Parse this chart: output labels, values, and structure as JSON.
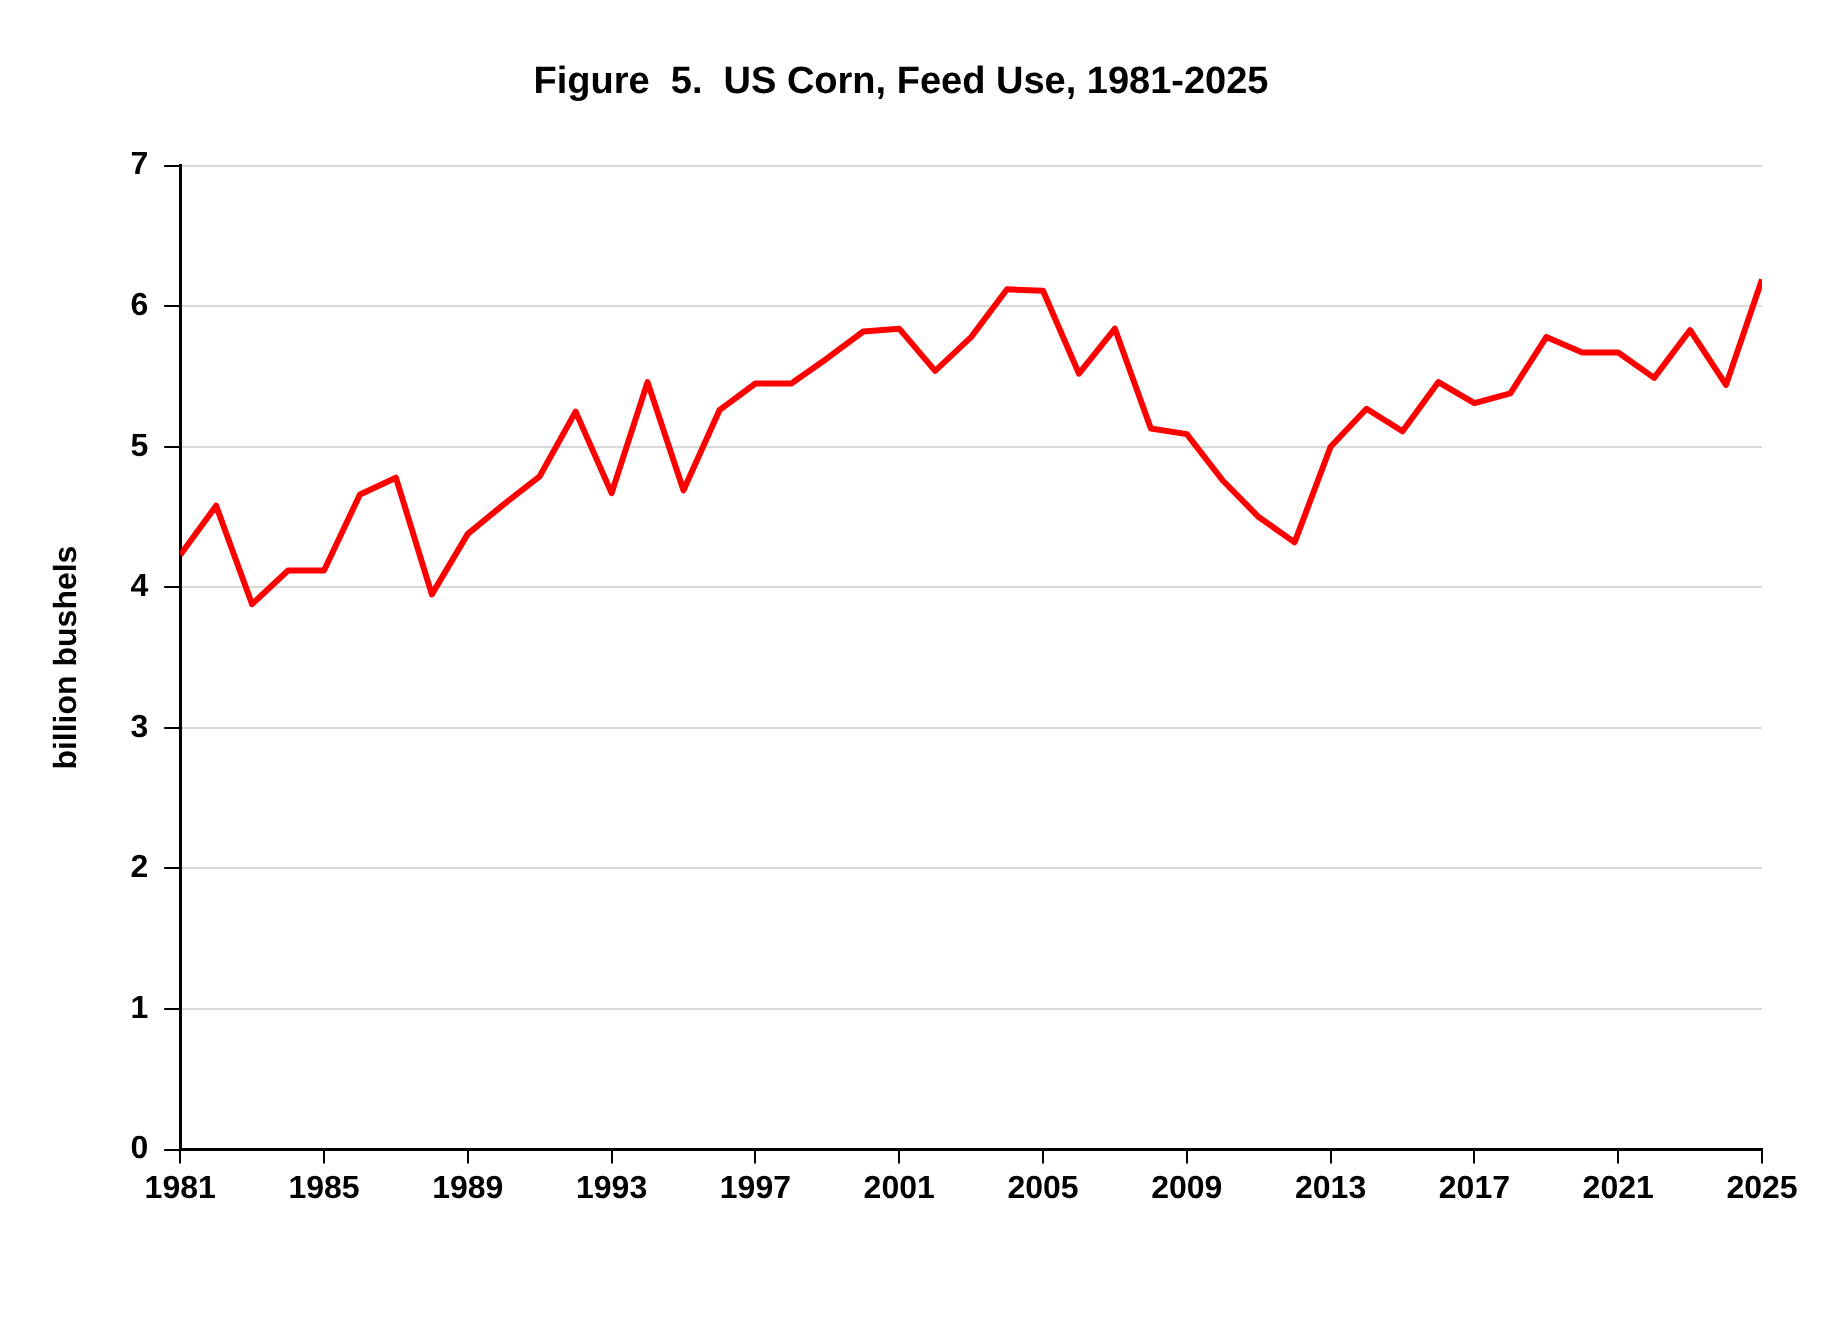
{
  "chart_data": {
    "type": "line",
    "title": "Figure  5.  US Corn, Feed Use, 1981-2025",
    "ylabel": "billion bushels",
    "x": [
      1981,
      1982,
      1983,
      1984,
      1985,
      1986,
      1987,
      1988,
      1989,
      1990,
      1991,
      1992,
      1993,
      1994,
      1995,
      1996,
      1997,
      1998,
      1999,
      2000,
      2001,
      2002,
      2003,
      2004,
      2005,
      2006,
      2007,
      2008,
      2009,
      2010,
      2011,
      2012,
      2013,
      2014,
      2015,
      2016,
      2017,
      2018,
      2019,
      2020,
      2021,
      2022,
      2023,
      2024,
      2025
    ],
    "series": [
      {
        "color": "#ff0000",
        "values": [
          4.23,
          4.58,
          3.88,
          4.12,
          4.12,
          4.66,
          4.78,
          3.95,
          4.38,
          4.59,
          4.79,
          5.25,
          4.67,
          5.46,
          4.69,
          5.26,
          5.45,
          5.45,
          5.63,
          5.82,
          5.84,
          5.54,
          5.78,
          6.12,
          6.11,
          5.52,
          5.84,
          5.13,
          5.09,
          4.76,
          4.5,
          4.32,
          5.0,
          5.27,
          5.11,
          5.46,
          5.31,
          5.38,
          5.78,
          5.67,
          5.67,
          5.49,
          5.83,
          5.44,
          6.19
        ]
      }
    ],
    "xlim": [
      1981,
      2025
    ],
    "xticks": [
      1981,
      1985,
      1989,
      1993,
      1997,
      2001,
      2005,
      2009,
      2013,
      2017,
      2021,
      2025
    ],
    "ylim": [
      0,
      7
    ],
    "yticks": [
      0,
      1,
      2,
      3,
      4,
      5,
      6,
      7
    ],
    "grid": "y",
    "legend": false,
    "marker": "none",
    "line_style": "solid"
  }
}
